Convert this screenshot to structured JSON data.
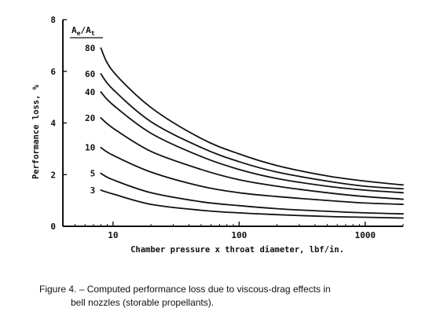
{
  "chart_data": {
    "type": "line",
    "xlabel": "Chamber pressure x throat diameter, lbf/in.",
    "ylabel": "Performance loss, %",
    "x_scale": "log",
    "xlim": [
      4,
      2000
    ],
    "ylim": [
      0,
      8
    ],
    "x_ticks": [
      10,
      100,
      1000
    ],
    "x_tick_labels": [
      "10",
      "100",
      "1000"
    ],
    "y_ticks": [
      0,
      2,
      4,
      6,
      8
    ],
    "y_tick_labels": [
      "0",
      "2",
      "4",
      "6",
      "8"
    ],
    "legend": {
      "title_main": "A",
      "title_sub1": "e",
      "title_sep": "/A",
      "title_sub2": "t",
      "placement": "left, beside curve starts"
    },
    "grid": false,
    "series": [
      {
        "name": "3",
        "x": [
          8,
          10,
          20,
          50,
          100,
          200,
          500,
          1000,
          2000
        ],
        "y": [
          1.4,
          1.25,
          0.85,
          0.62,
          0.52,
          0.45,
          0.38,
          0.35,
          0.32
        ]
      },
      {
        "name": "5",
        "x": [
          8,
          10,
          20,
          50,
          100,
          200,
          500,
          1000,
          2000
        ],
        "y": [
          2.05,
          1.8,
          1.3,
          0.95,
          0.8,
          0.68,
          0.58,
          0.52,
          0.48
        ]
      },
      {
        "name": "10",
        "x": [
          8,
          10,
          20,
          50,
          100,
          200,
          500,
          1000,
          2000
        ],
        "y": [
          3.05,
          2.75,
          2.1,
          1.55,
          1.3,
          1.15,
          1.0,
          0.9,
          0.85
        ]
      },
      {
        "name": "20",
        "x": [
          8,
          10,
          20,
          50,
          100,
          200,
          500,
          1000,
          2000
        ],
        "y": [
          4.2,
          3.8,
          2.9,
          2.2,
          1.8,
          1.55,
          1.3,
          1.15,
          1.05
        ]
      },
      {
        "name": "40",
        "x": [
          8,
          10,
          20,
          50,
          100,
          200,
          500,
          1000,
          2000
        ],
        "y": [
          5.2,
          4.7,
          3.6,
          2.7,
          2.2,
          1.85,
          1.55,
          1.4,
          1.3
        ]
      },
      {
        "name": "60",
        "x": [
          8,
          10,
          20,
          50,
          100,
          200,
          500,
          1000,
          2000
        ],
        "y": [
          5.9,
          5.3,
          4.05,
          3.05,
          2.5,
          2.1,
          1.75,
          1.55,
          1.45
        ]
      },
      {
        "name": "80",
        "x": [
          8,
          10,
          20,
          50,
          100,
          200,
          500,
          1000,
          2000
        ],
        "y": [
          6.9,
          6.0,
          4.6,
          3.4,
          2.8,
          2.35,
          1.95,
          1.75,
          1.6
        ]
      }
    ]
  },
  "caption": {
    "line1": "Figure 4. – Computed performance loss due to viscous-drag effects in",
    "line2": "bell nozzles (storable propellants)."
  }
}
